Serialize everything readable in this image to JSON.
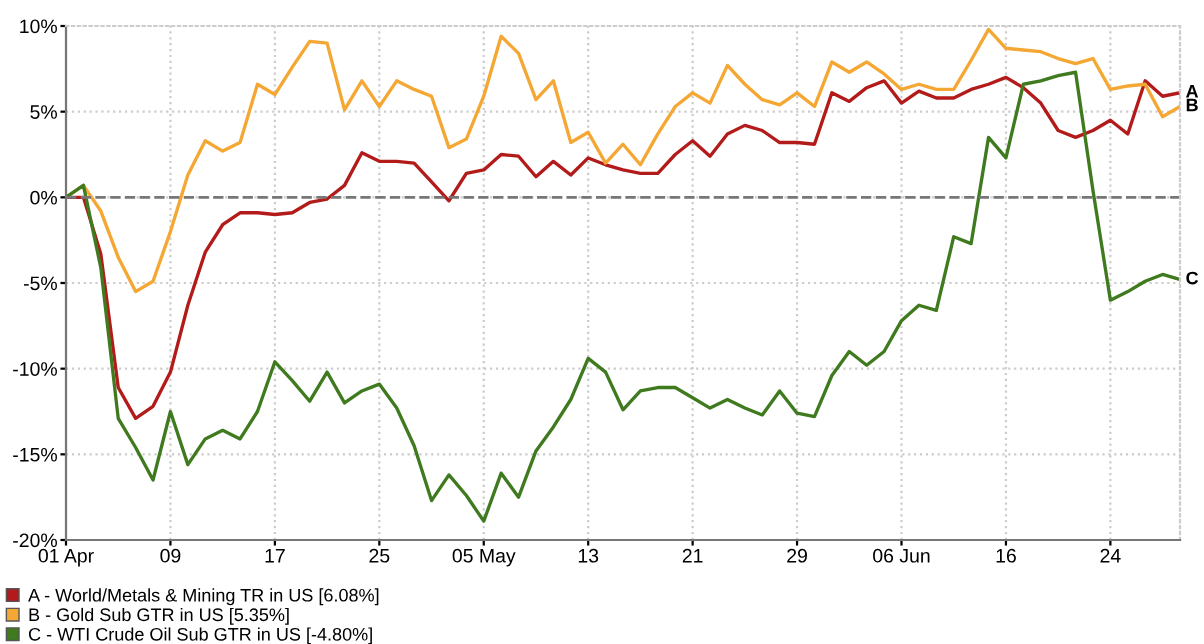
{
  "chart_data": {
    "type": "line",
    "categories": [
      "01 Apr",
      null,
      null,
      null,
      null,
      null,
      "09",
      null,
      null,
      null,
      null,
      null,
      "17",
      null,
      null,
      null,
      null,
      null,
      "25",
      null,
      null,
      null,
      null,
      null,
      "05 May",
      null,
      null,
      null,
      null,
      null,
      "13",
      null,
      null,
      null,
      null,
      null,
      "21",
      null,
      null,
      null,
      null,
      null,
      "29",
      null,
      null,
      null,
      null,
      null,
      "06 Jun",
      null,
      null,
      null,
      null,
      null,
      "16",
      null,
      null,
      null,
      null,
      null,
      "24",
      null,
      null,
      null,
      null
    ],
    "series": [
      {
        "name": "A - World/Metals & Mining TR in US [6.08%]",
        "color": "#b31b1b",
        "values": [
          0,
          0,
          -3.3,
          -11.1,
          -12.9,
          -12.2,
          -10.2,
          -6.3,
          -3.2,
          -1.6,
          -0.9,
          -0.9,
          -1.0,
          -0.9,
          -0.3,
          -0.1,
          0.7,
          2.6,
          2.1,
          2.1,
          2.0,
          0.9,
          -0.2,
          1.4,
          1.6,
          2.5,
          2.4,
          1.2,
          2.1,
          1.3,
          2.3,
          1.9,
          1.6,
          1.4,
          1.4,
          2.5,
          3.3,
          2.4,
          3.7,
          4.2,
          3.9,
          3.2,
          3.2,
          3.1,
          6.1,
          5.6,
          6.4,
          6.8,
          5.5,
          6.2,
          5.8,
          5.8,
          6.3,
          6.6,
          7.0,
          6.4,
          5.5,
          3.9,
          3.5,
          3.9,
          4.5,
          3.7,
          6.8,
          5.9,
          6.1
        ]
      },
      {
        "name": "B - Gold Sub GTR in US [5.35%]",
        "color": "#f5a733",
        "values": [
          0,
          0.7,
          -0.8,
          -3.5,
          -5.5,
          -4.9,
          -2.0,
          1.3,
          3.3,
          2.7,
          3.2,
          6.6,
          6.0,
          7.6,
          9.1,
          9.0,
          5.1,
          6.8,
          5.3,
          6.8,
          6.3,
          5.9,
          2.9,
          3.4,
          5.9,
          9.4,
          8.4,
          5.7,
          6.8,
          3.2,
          3.8,
          2.0,
          3.1,
          1.9,
          3.7,
          5.3,
          6.1,
          5.5,
          7.7,
          6.6,
          5.7,
          5.4,
          6.1,
          5.3,
          7.9,
          7.3,
          7.9,
          7.2,
          6.3,
          6.6,
          6.3,
          6.3,
          8.0,
          9.8,
          8.7,
          8.6,
          8.5,
          8.1,
          7.8,
          8.1,
          6.3,
          6.5,
          6.6,
          4.7,
          5.3
        ]
      },
      {
        "name": "C - WTI Crude Oil Sub GTR in US [-4.80%]",
        "color": "#3f7a1f",
        "values": [
          0,
          0.7,
          -4.1,
          -12.9,
          -14.6,
          -16.5,
          -12.5,
          -15.6,
          -14.1,
          -13.6,
          -14.1,
          -12.5,
          -9.6,
          -10.7,
          -11.9,
          -10.2,
          -12.0,
          -11.3,
          -10.9,
          -12.3,
          -14.5,
          -17.7,
          -16.2,
          -17.4,
          -18.9,
          -16.1,
          -17.5,
          -14.8,
          -13.4,
          -11.8,
          -9.4,
          -10.2,
          -12.4,
          -11.3,
          -11.1,
          -11.1,
          -11.7,
          -12.3,
          -11.8,
          -12.3,
          -12.7,
          -11.3,
          -12.6,
          -12.8,
          -10.4,
          -9.0,
          -9.8,
          -9.0,
          -7.2,
          -6.3,
          -6.6,
          -2.3,
          -2.7,
          3.5,
          2.3,
          6.6,
          6.8,
          7.1,
          7.3,
          0.4,
          -6.0,
          -5.5,
          -4.9,
          -4.5,
          -4.8
        ]
      }
    ],
    "ylim": [
      -20,
      10
    ],
    "yticks": [
      {
        "value": -20,
        "label": "-20%"
      },
      {
        "value": -15,
        "label": "-15%"
      },
      {
        "value": -10,
        "label": "-10%"
      },
      {
        "value": -5,
        "label": "-5%"
      },
      {
        "value": 0,
        "label": "0%"
      },
      {
        "value": 5,
        "label": "5%"
      },
      {
        "value": 10,
        "label": "10%"
      }
    ],
    "ref_lines": [
      {
        "axis": "y",
        "value": 0,
        "color": "#777777",
        "line_style": "dashed"
      }
    ],
    "annotations": [
      "A",
      "B",
      "C"
    ],
    "grid": true,
    "legend": "bottom",
    "marker": "none",
    "line_style": "solid"
  }
}
